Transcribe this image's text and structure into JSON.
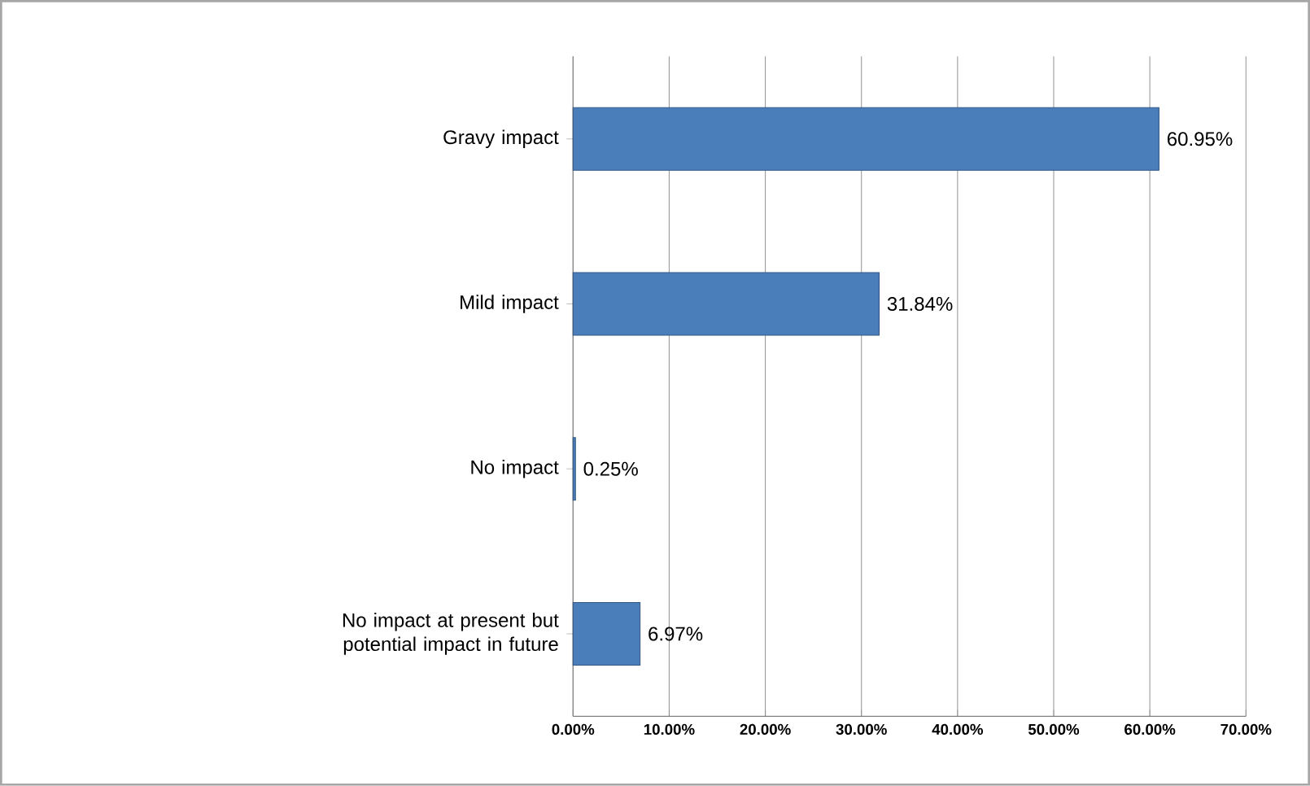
{
  "chart_data": {
    "type": "bar",
    "orientation": "horizontal",
    "categories": [
      "Gravy impact",
      "Mild impact",
      "No impact",
      "No impact at present but potential impact in future"
    ],
    "values": [
      60.95,
      31.84,
      0.25,
      6.97
    ],
    "value_labels": [
      "60.95%",
      "31.84%",
      "0.25%",
      "6.97%"
    ],
    "color": "#4a7ebb",
    "xlim": [
      0,
      70
    ],
    "xticks": [
      {
        "value": 0,
        "label": "0.00%"
      },
      {
        "value": 10,
        "label": "10.00%"
      },
      {
        "value": 20,
        "label": "20.00%"
      },
      {
        "value": 30,
        "label": "30.00%"
      },
      {
        "value": 40,
        "label": "40.00%"
      },
      {
        "value": 50,
        "label": "50.00%"
      },
      {
        "value": 60,
        "label": "60.00%"
      },
      {
        "value": 70,
        "label": "70.00%"
      }
    ],
    "grid": "x"
  }
}
